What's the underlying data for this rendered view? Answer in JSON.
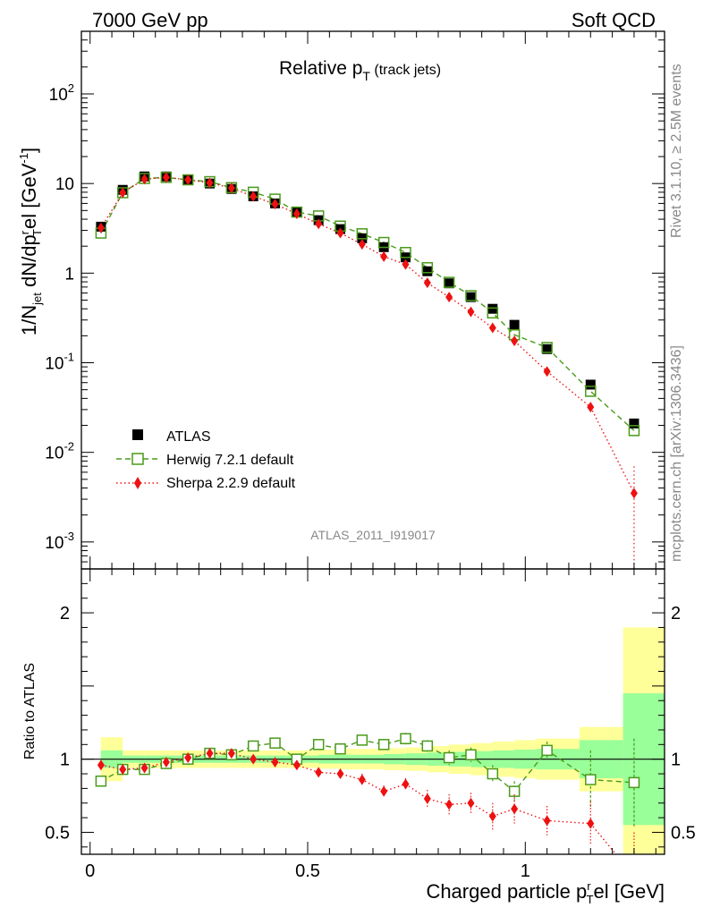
{
  "header": {
    "left": "7000 GeV pp",
    "right": "Soft QCD"
  },
  "side_labels": {
    "rivet": "Rivet 3.1.10, ≥ 2.5M events",
    "mcplots": "mcplots.cern.ch [arXiv:1306.3436]"
  },
  "plot": {
    "title_main": "Relative p",
    "title_sub": "T",
    "title_suffix": " (track jets)",
    "analysis_id": "ATLAS_2011_I919017",
    "ylabel_parts": [
      "1/N",
      "jet",
      " dN/dp",
      "r",
      "T",
      "el [GeV",
      "-1",
      "]"
    ],
    "ratio_ylabel": "Ratio to ATLAS",
    "xlabel_parts": [
      "Charged particle p",
      "r",
      "T",
      "el [GeV]"
    ],
    "main_ytick_labels": [
      "10",
      "-3",
      "10",
      "-2",
      "10",
      "-1",
      "1",
      "10",
      "10",
      "2"
    ],
    "ratio_ytick_labels": [
      "0.5",
      "1",
      "2"
    ],
    "xtick_labels": [
      "0",
      "0.5",
      "1"
    ],
    "legend": [
      {
        "label": "ATLAS",
        "color": "#000000",
        "marker": "filled-square"
      },
      {
        "label": "Herwig 7.2.1 default",
        "color": "#4a9a1a",
        "marker": "open-square",
        "line": "dashed"
      },
      {
        "label": "Sherpa 2.2.9 default",
        "color": "#ee1111",
        "marker": "filled-diamond",
        "line": "dotted"
      }
    ]
  },
  "chart_data": {
    "type": "scatter",
    "title": "Relative pT (track jets)",
    "xlabel": "Charged particle pTrel [GeV]",
    "ylabel": "1/Njet dN/dpTrel [GeV-1]",
    "yscale": "log",
    "xlim": [
      -0.02,
      1.32
    ],
    "ylim": [
      0.0005,
      500
    ],
    "ratio_ylim": [
      0.35,
      2.3
    ],
    "grid": false,
    "legend_position": "lower-left",
    "x": [
      0.025,
      0.075,
      0.125,
      0.175,
      0.225,
      0.275,
      0.325,
      0.375,
      0.425,
      0.475,
      0.525,
      0.575,
      0.625,
      0.675,
      0.725,
      0.775,
      0.825,
      0.875,
      0.925,
      0.975,
      1.05,
      1.15,
      1.25
    ],
    "series": [
      {
        "name": "ATLAS",
        "color": "#000000",
        "values": [
          3.3,
          8.5,
          12.0,
          12.0,
          11.0,
          10.0,
          8.7,
          7.2,
          6.0,
          4.8,
          3.9,
          3.1,
          2.45,
          1.95,
          1.5,
          1.05,
          0.77,
          0.54,
          0.4,
          0.265,
          0.142,
          0.057,
          0.021
        ]
      },
      {
        "name": "Herwig 7.2.1 default",
        "color": "#4a9a1a",
        "values": [
          2.8,
          7.9,
          11.4,
          11.7,
          11.0,
          10.5,
          9.0,
          8.0,
          6.7,
          4.8,
          4.35,
          3.35,
          2.75,
          2.2,
          1.7,
          1.15,
          0.79,
          0.56,
          0.36,
          0.205,
          0.148,
          0.048,
          0.0175
        ]
      },
      {
        "name": "Sherpa 2.2.9 default",
        "color": "#ee1111",
        "values": [
          3.2,
          7.9,
          11.2,
          11.7,
          11.0,
          10.2,
          8.9,
          7.2,
          5.9,
          4.6,
          3.55,
          2.8,
          2.1,
          1.53,
          1.25,
          0.78,
          0.54,
          0.37,
          0.245,
          0.175,
          0.08,
          0.032,
          0.0035
        ]
      }
    ],
    "ratio_series": [
      {
        "name": "Herwig 7.2.1 default",
        "values": [
          0.85,
          0.93,
          0.93,
          0.97,
          1.0,
          1.04,
          1.03,
          1.09,
          1.11,
          1.0,
          1.1,
          1.07,
          1.13,
          1.1,
          1.14,
          1.09,
          1.01,
          1.03,
          0.9,
          0.78,
          1.06,
          0.86,
          0.84
        ],
        "errors": [
          0.03,
          0.02,
          0.02,
          0.02,
          0.02,
          0.02,
          0.02,
          0.02,
          0.02,
          0.02,
          0.02,
          0.03,
          0.03,
          0.03,
          0.04,
          0.04,
          0.05,
          0.05,
          0.06,
          0.07,
          0.06,
          0.2,
          0.3
        ]
      },
      {
        "name": "Sherpa 2.2.9 default",
        "values": [
          0.96,
          0.93,
          0.94,
          0.98,
          1.01,
          1.04,
          1.04,
          1.0,
          0.98,
          0.96,
          0.91,
          0.9,
          0.86,
          0.78,
          0.83,
          0.73,
          0.69,
          0.7,
          0.61,
          0.66,
          0.58,
          0.56,
          0.2
        ],
        "errors": [
          0.03,
          0.02,
          0.02,
          0.02,
          0.02,
          0.02,
          0.02,
          0.02,
          0.02,
          0.03,
          0.03,
          0.03,
          0.04,
          0.04,
          0.04,
          0.06,
          0.07,
          0.07,
          0.09,
          0.1,
          0.1,
          0.15,
          0.3
        ]
      }
    ],
    "atlas_uncertainty": {
      "bin_edges": [
        0.0,
        0.05,
        0.1,
        0.15,
        0.2,
        0.25,
        0.3,
        0.35,
        0.4,
        0.45,
        0.5,
        0.55,
        0.6,
        0.65,
        0.7,
        0.75,
        0.8,
        0.85,
        0.9,
        0.95,
        1.0,
        1.1,
        1.2,
        1.3
      ],
      "stat_halfwidth": [
        0.06,
        0.025,
        0.025,
        0.025,
        0.025,
        0.025,
        0.025,
        0.025,
        0.025,
        0.025,
        0.03,
        0.03,
        0.03,
        0.035,
        0.04,
        0.045,
        0.05,
        0.055,
        0.06,
        0.065,
        0.07,
        0.13,
        0.45
      ],
      "total_halfwidth": [
        0.15,
        0.06,
        0.06,
        0.06,
        0.06,
        0.06,
        0.06,
        0.06,
        0.06,
        0.06,
        0.065,
        0.07,
        0.07,
        0.075,
        0.08,
        0.09,
        0.1,
        0.11,
        0.12,
        0.13,
        0.14,
        0.22,
        0.9
      ]
    },
    "colors": {
      "stat_band": "#99ff99",
      "total_band": "#ffff99"
    }
  }
}
